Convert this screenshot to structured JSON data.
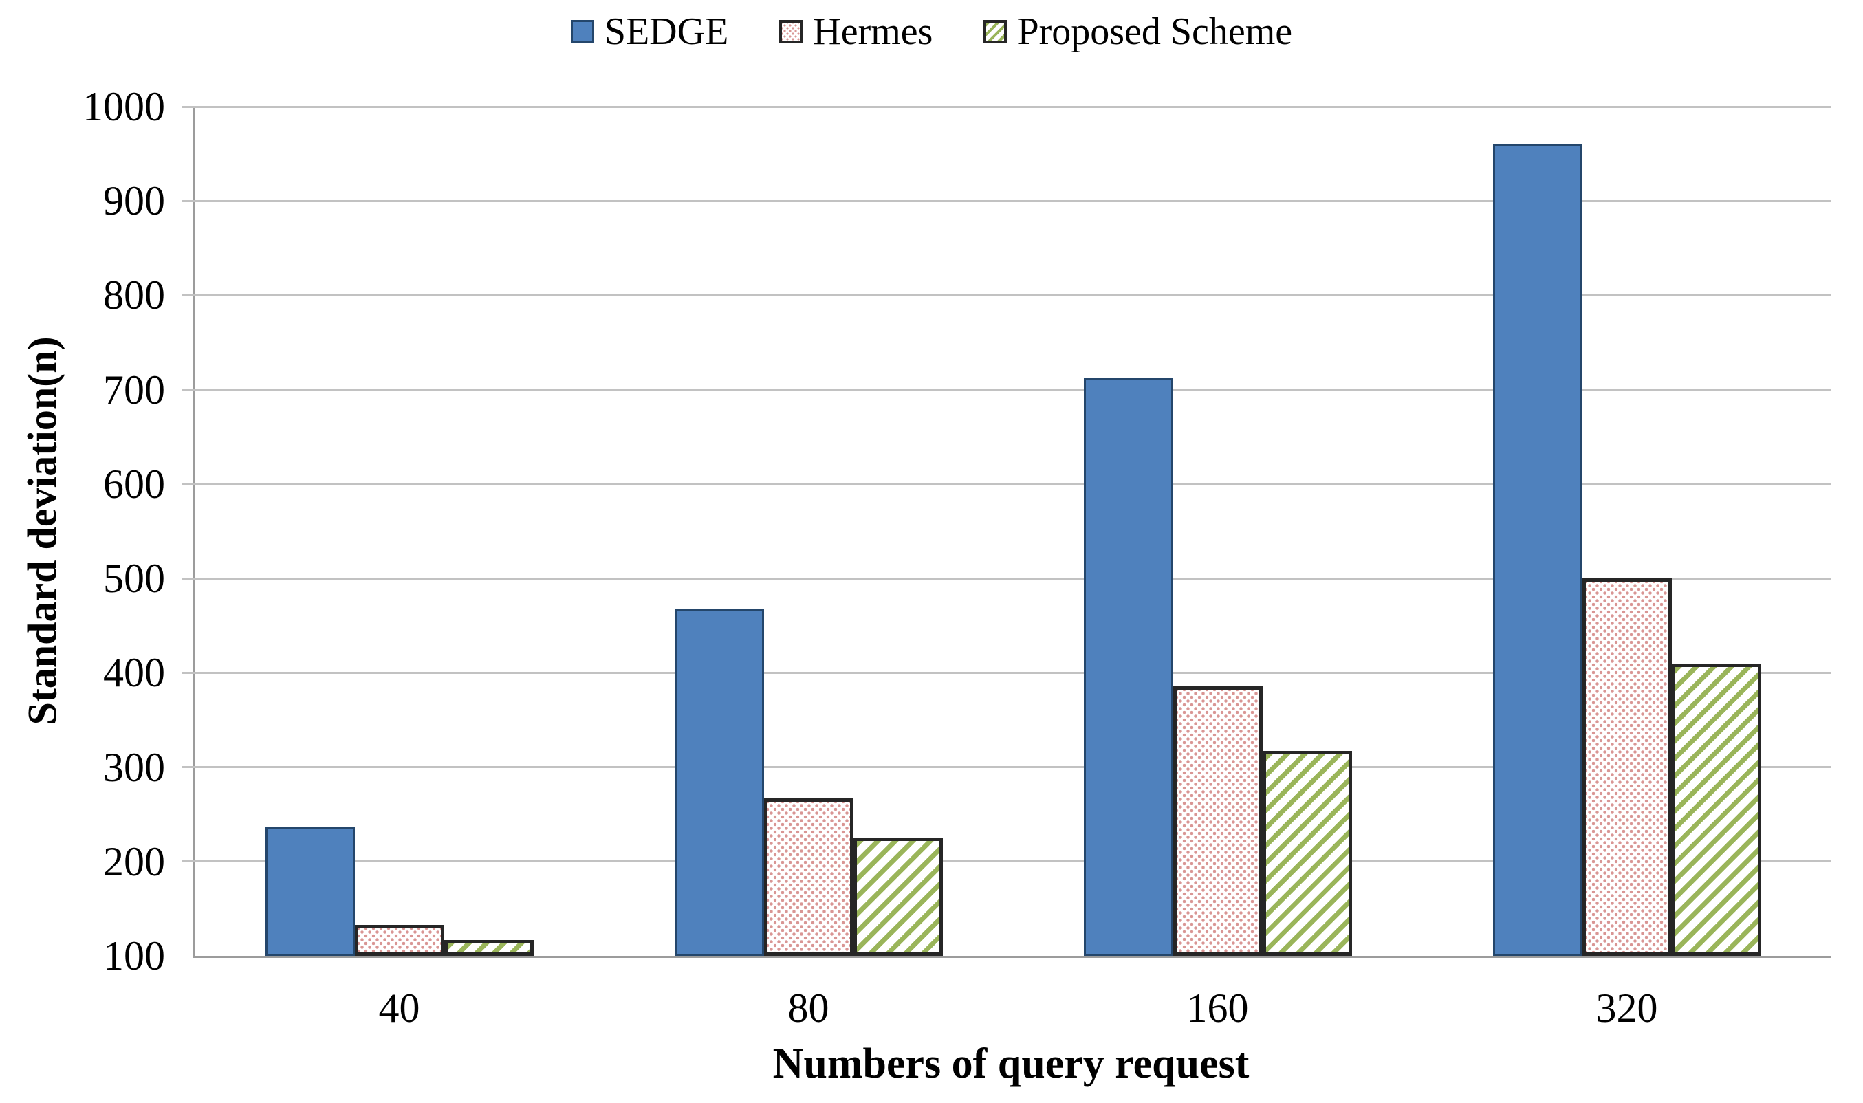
{
  "chart_data": {
    "type": "bar",
    "title": "",
    "xlabel": "Numbers of query request",
    "ylabel": "Standard deviation(n)",
    "categories": [
      "40",
      "80",
      "160",
      "320"
    ],
    "series": [
      {
        "name": "SEDGE",
        "style": "sedge",
        "values": [
          237,
          468,
          713,
          960
        ]
      },
      {
        "name": "Hermes",
        "style": "hermes",
        "values": [
          133,
          267,
          386,
          500
        ]
      },
      {
        "name": "Proposed Scheme",
        "style": "proposed",
        "values": [
          117,
          225,
          317,
          410
        ]
      }
    ],
    "ylim": [
      100,
      1000
    ],
    "ytick_step": 100,
    "ytick_labels": [
      "100",
      "200",
      "300",
      "400",
      "500",
      "600",
      "700",
      "800",
      "900",
      "1000"
    ],
    "grid": "horizontal",
    "legend_position": "top-center",
    "colors": {
      "sedge_fill": "#4f81bd",
      "sedge_border": "#24466b",
      "hermes_dot": "#d99694",
      "hermes_border": "#262626",
      "proposed_stripe": "#9ab55a",
      "proposed_border": "#262626",
      "gridline": "#c2c2c2",
      "axis_line": "#9c9c9c",
      "text": "#000000"
    }
  }
}
